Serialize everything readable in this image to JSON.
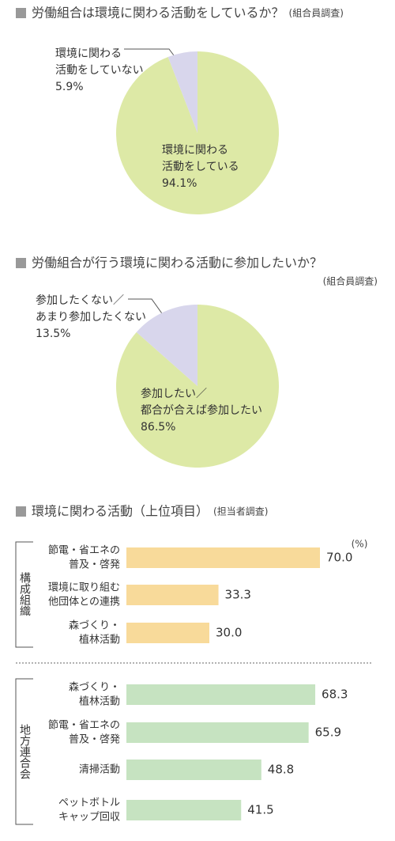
{
  "chart_data": [
    {
      "type": "pie",
      "title": "労働組合は環境に関わる活動をしているか？",
      "subtitle": "(組合員調査)",
      "labels": [
        [
          "環境に関わる",
          "活動をしている"
        ],
        [
          "環境に関わる",
          "活動をしていない"
        ]
      ],
      "values": [
        94.1,
        5.9
      ],
      "value_labels": [
        "94.1%",
        "5.9%"
      ],
      "colors": [
        "#dde9a6",
        "#d8d6ec"
      ]
    },
    {
      "type": "pie",
      "title": "労働組合が行う環境に関わる活動に参加したいか？",
      "subtitle": "(組合員調査)",
      "labels": [
        [
          "参加したい／",
          "都合が合えば参加したい"
        ],
        [
          "参加したくない／",
          "あまり参加したくない"
        ]
      ],
      "values": [
        86.5,
        13.5
      ],
      "value_labels": [
        "86.5%",
        "13.5%"
      ],
      "colors": [
        "#dde9a6",
        "#d8d6ec"
      ]
    },
    {
      "type": "bar",
      "orientation": "horizontal",
      "title": "環境に関わる活動（上位項目）",
      "subtitle": "(担当者調査)",
      "unit": "(%)",
      "groups": [
        {
          "name": "構成組織",
          "color": "#f8da9a",
          "categories": [
            [
              "節電・省エネの",
              "普及・啓発"
            ],
            [
              "環境に取り組む",
              "他団体との連携"
            ],
            [
              "森づくり・",
              "植林活動"
            ]
          ],
          "values": [
            70.0,
            33.3,
            30.0
          ],
          "value_labels": [
            "70.0",
            "33.3",
            "30.0"
          ]
        },
        {
          "name": "地方連合会",
          "color": "#c6e3c1",
          "categories": [
            [
              "森づくり・",
              "植林活動"
            ],
            [
              "節電・省エネの",
              "普及・啓発"
            ],
            [
              "清掃活動"
            ],
            [
              "ペットボトル",
              "キャップ回収"
            ]
          ],
          "values": [
            68.3,
            65.9,
            48.8,
            41.5
          ],
          "value_labels": [
            "68.3",
            "65.9",
            "48.8",
            "41.5"
          ]
        }
      ]
    }
  ]
}
